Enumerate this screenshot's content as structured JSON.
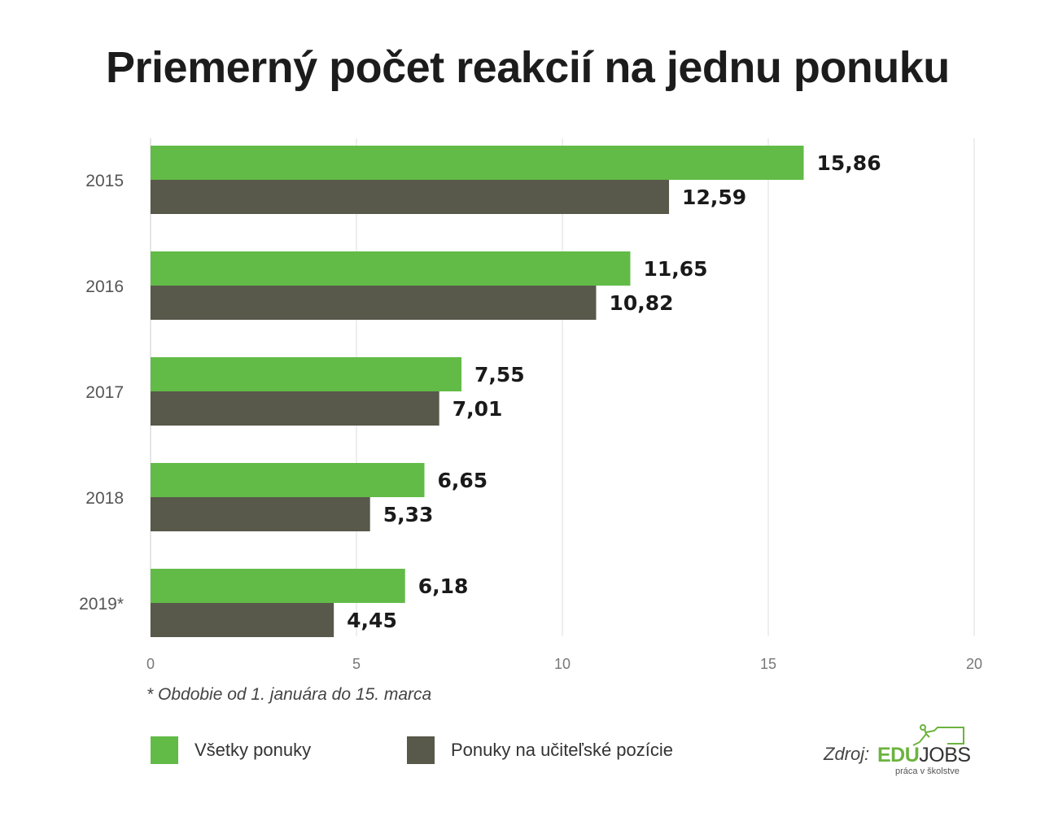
{
  "chart_data": {
    "type": "bar",
    "orientation": "horizontal",
    "title": "Priemerný počet reakcií na jednu ponuku",
    "categories": [
      "2015",
      "2016",
      "2017",
      "2018",
      "2019*"
    ],
    "series": [
      {
        "name": "Všetky ponuky",
        "color": "#62bb47",
        "values": [
          15.86,
          11.65,
          7.55,
          6.65,
          6.18
        ]
      },
      {
        "name": "Ponuky na učiteľské pozície",
        "color": "#58584b",
        "values": [
          12.59,
          10.82,
          7.01,
          5.33,
          4.45
        ]
      }
    ],
    "value_labels": [
      [
        "15,86",
        "11,65",
        "7,55",
        "6,65",
        "6,18"
      ],
      [
        "12,59",
        "10,82",
        "7,01",
        "5,33",
        "4,45"
      ]
    ],
    "xlim": [
      0,
      20
    ],
    "xticks": [
      "0",
      "5",
      "10",
      "15",
      "20"
    ],
    "grid": true,
    "legend_position": "bottom",
    "footnote": "* Obdobie od 1. januára do 15. marca"
  },
  "source": {
    "label": "Zdroj:",
    "logo_edu": "EDU",
    "logo_jobs": "JOBS",
    "logo_tagline": "práca v školstve"
  }
}
